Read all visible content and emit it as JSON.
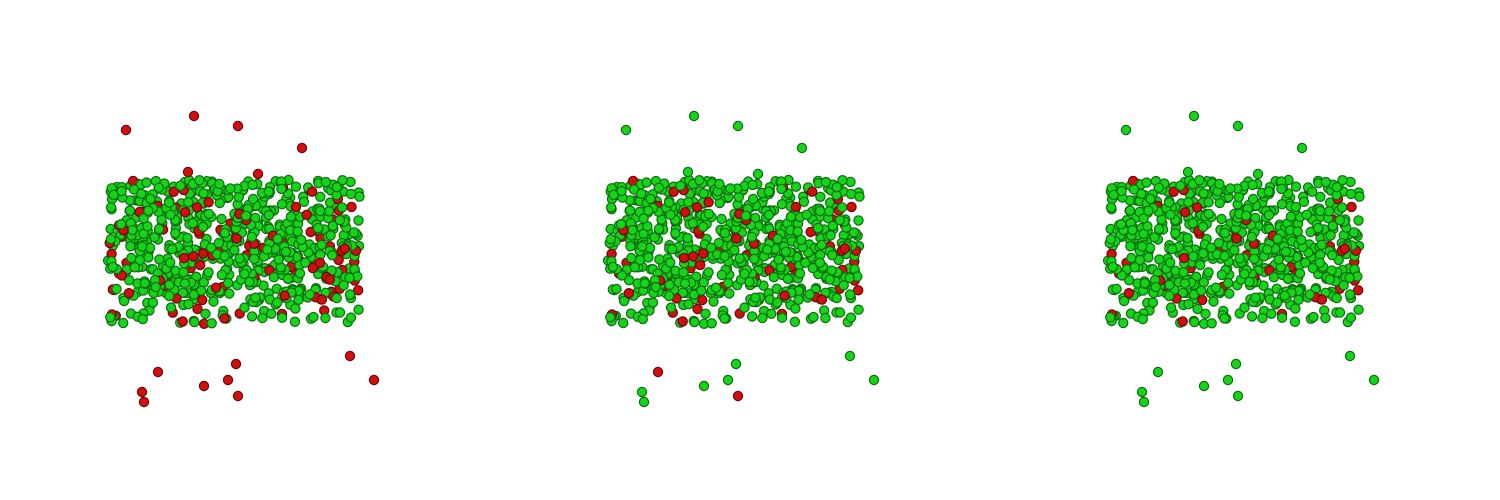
{
  "chart_data": {
    "type": "scatter",
    "layout": "1x3",
    "axes_visible": false,
    "grid": false,
    "legend": "none",
    "colors": {
      "green_fill": "#16d41a",
      "green_edge": "#0b6d0d",
      "red_fill": "#d20f0f",
      "red_edge": "#6a0606"
    },
    "panels": [
      {
        "outliers": [
          {
            "x": 0.03,
            "y": 0.55,
            "c": "red"
          },
          {
            "x": 0.37,
            "y": 0.62,
            "c": "red"
          },
          {
            "x": 0.59,
            "y": 0.57,
            "c": "red"
          },
          {
            "x": 0.91,
            "y": 0.46,
            "c": "red"
          },
          {
            "x": 0.34,
            "y": 0.34,
            "c": "red"
          },
          {
            "x": 0.69,
            "y": 0.33,
            "c": "red"
          },
          {
            "x": 0.19,
            "y": -0.66,
            "c": "red"
          },
          {
            "x": 0.12,
            "y": -0.81,
            "c": "red"
          },
          {
            "x": 0.11,
            "y": -0.76,
            "c": "red"
          },
          {
            "x": 0.42,
            "y": -0.73,
            "c": "red"
          },
          {
            "x": 0.54,
            "y": -0.7,
            "c": "red"
          },
          {
            "x": 0.58,
            "y": -0.62,
            "c": "red"
          },
          {
            "x": 0.59,
            "y": -0.78,
            "c": "red"
          },
          {
            "x": 1.15,
            "y": -0.58,
            "c": "red"
          },
          {
            "x": 1.27,
            "y": -0.7,
            "c": "red"
          }
        ],
        "red_fraction": 0.14
      },
      {
        "outliers": [
          {
            "x": 0.03,
            "y": 0.55,
            "c": "green"
          },
          {
            "x": 0.37,
            "y": 0.62,
            "c": "green"
          },
          {
            "x": 0.59,
            "y": 0.57,
            "c": "green"
          },
          {
            "x": 0.91,
            "y": 0.46,
            "c": "green"
          },
          {
            "x": 0.34,
            "y": 0.34,
            "c": "green"
          },
          {
            "x": 0.69,
            "y": 0.33,
            "c": "green"
          },
          {
            "x": 0.19,
            "y": -0.66,
            "c": "red"
          },
          {
            "x": 0.12,
            "y": -0.81,
            "c": "green"
          },
          {
            "x": 0.11,
            "y": -0.76,
            "c": "green"
          },
          {
            "x": 0.42,
            "y": -0.73,
            "c": "green"
          },
          {
            "x": 0.54,
            "y": -0.7,
            "c": "green"
          },
          {
            "x": 0.58,
            "y": -0.62,
            "c": "green"
          },
          {
            "x": 0.59,
            "y": -0.78,
            "c": "red"
          },
          {
            "x": 1.15,
            "y": -0.58,
            "c": "green"
          },
          {
            "x": 1.27,
            "y": -0.7,
            "c": "green"
          }
        ],
        "red_fraction": 0.1
      },
      {
        "outliers": [
          {
            "x": 0.03,
            "y": 0.55,
            "c": "green"
          },
          {
            "x": 0.37,
            "y": 0.62,
            "c": "green"
          },
          {
            "x": 0.59,
            "y": 0.57,
            "c": "green"
          },
          {
            "x": 0.91,
            "y": 0.46,
            "c": "green"
          },
          {
            "x": 0.34,
            "y": 0.34,
            "c": "green"
          },
          {
            "x": 0.69,
            "y": 0.33,
            "c": "green"
          },
          {
            "x": 0.19,
            "y": -0.66,
            "c": "green"
          },
          {
            "x": 0.12,
            "y": -0.81,
            "c": "green"
          },
          {
            "x": 0.11,
            "y": -0.76,
            "c": "green"
          },
          {
            "x": 0.42,
            "y": -0.73,
            "c": "green"
          },
          {
            "x": 0.54,
            "y": -0.7,
            "c": "green"
          },
          {
            "x": 0.58,
            "y": -0.62,
            "c": "green"
          },
          {
            "x": 0.59,
            "y": -0.78,
            "c": "green"
          },
          {
            "x": 1.15,
            "y": -0.58,
            "c": "green"
          },
          {
            "x": 1.27,
            "y": -0.7,
            "c": "green"
          }
        ],
        "red_fraction": 0.07
      }
    ],
    "cluster": {
      "x_range": [
        0.0,
        1.2
      ],
      "y_range": [
        -0.3,
        0.3
      ],
      "count": 720
    },
    "view_range": {
      "x": [
        -0.6,
        1.9
      ],
      "y": [
        -1.3,
        1.2
      ]
    }
  }
}
